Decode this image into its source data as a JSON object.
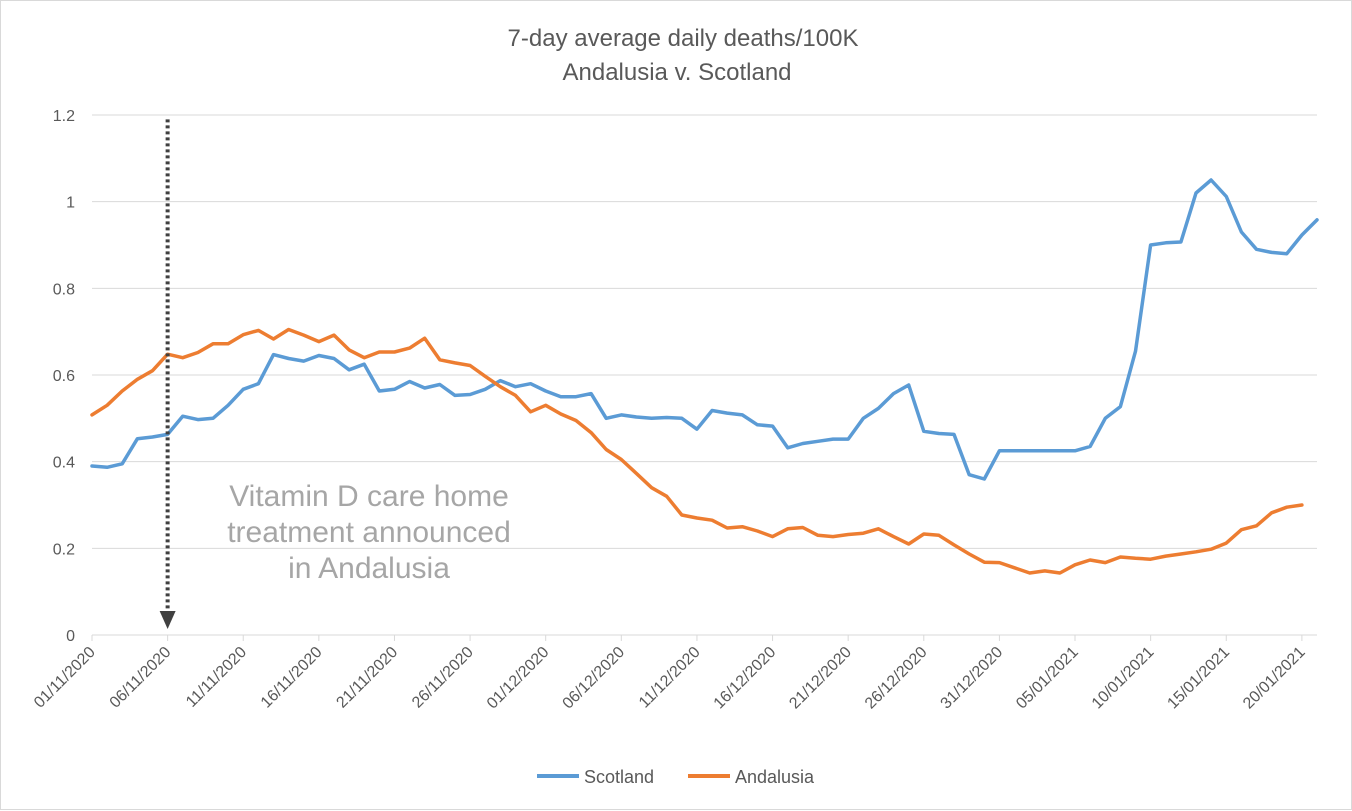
{
  "chart_data": {
    "type": "line",
    "title": "7-day average daily deaths/100K",
    "subtitle": "Andalusia v. Scotland",
    "xlabel": "",
    "ylabel": "",
    "ylim": [
      0,
      1.2
    ],
    "y_ticks": [
      "0",
      "0.2",
      "0.4",
      "0.6",
      "0.8",
      "1",
      "1.2"
    ],
    "x_tick_labels": [
      "01/11/2020",
      "06/11/2020",
      "11/11/2020",
      "16/11/2020",
      "21/11/2020",
      "26/11/2020",
      "01/12/2020",
      "06/12/2020",
      "11/12/2020",
      "16/12/2020",
      "21/12/2020",
      "26/12/2020",
      "31/12/2020",
      "05/01/2021",
      "10/01/2021",
      "15/01/2021",
      "20/01/2021"
    ],
    "x_range": [
      "01/11/2020",
      "21/01/2021"
    ],
    "grid": true,
    "legend_position": "bottom",
    "annotation": {
      "lines": [
        "Vitamin D care home",
        "treatment announced",
        "in Andalusia"
      ],
      "date": "06/11/2020"
    },
    "series": [
      {
        "name": "Scotland",
        "color": "#5b9bd5",
        "values": [
          0.39,
          0.387,
          0.395,
          0.453,
          0.457,
          0.463,
          0.505,
          0.497,
          0.5,
          0.53,
          0.567,
          0.58,
          0.647,
          0.638,
          0.632,
          0.645,
          0.638,
          0.612,
          0.625,
          0.563,
          0.567,
          0.585,
          0.57,
          0.578,
          0.553,
          0.555,
          0.567,
          0.587,
          0.573,
          0.58,
          0.563,
          0.55,
          0.55,
          0.557,
          0.5,
          0.508,
          0.503,
          0.5,
          0.502,
          0.5,
          0.475,
          0.518,
          0.512,
          0.508,
          0.485,
          0.482,
          0.432,
          0.442,
          0.447,
          0.452,
          0.452,
          0.5,
          0.523,
          0.557,
          0.577,
          0.47,
          0.465,
          0.463,
          0.37,
          0.36,
          0.425,
          0.425,
          0.425,
          0.425,
          0.425,
          0.425,
          0.435,
          0.5,
          0.527,
          0.655,
          0.9,
          0.905,
          0.907,
          1.02,
          1.05,
          1.012,
          0.93,
          0.89,
          0.883,
          0.88,
          0.923,
          0.958
        ]
      },
      {
        "name": "Andalusia",
        "color": "#ed7d31",
        "values": [
          0.508,
          0.53,
          0.563,
          0.59,
          0.61,
          0.648,
          0.64,
          0.652,
          0.672,
          0.672,
          0.693,
          0.703,
          0.683,
          0.705,
          0.692,
          0.677,
          0.692,
          0.658,
          0.64,
          0.653,
          0.653,
          0.662,
          0.685,
          0.635,
          0.628,
          0.622,
          0.597,
          0.573,
          0.553,
          0.515,
          0.53,
          0.51,
          0.495,
          0.467,
          0.428,
          0.405,
          0.373,
          0.34,
          0.32,
          0.277,
          0.27,
          0.265,
          0.247,
          0.25,
          0.24,
          0.227,
          0.245,
          0.248,
          0.23,
          0.227,
          0.232,
          0.235,
          0.245,
          0.227,
          0.21,
          0.233,
          0.23,
          0.208,
          0.187,
          0.168,
          0.167,
          0.155,
          0.143,
          0.148,
          0.143,
          0.162,
          0.173,
          0.167,
          0.18,
          0.177,
          0.175,
          0.182,
          0.187,
          0.192,
          0.198,
          0.212,
          0.243,
          0.252,
          0.282,
          0.295,
          0.3
        ]
      }
    ]
  }
}
